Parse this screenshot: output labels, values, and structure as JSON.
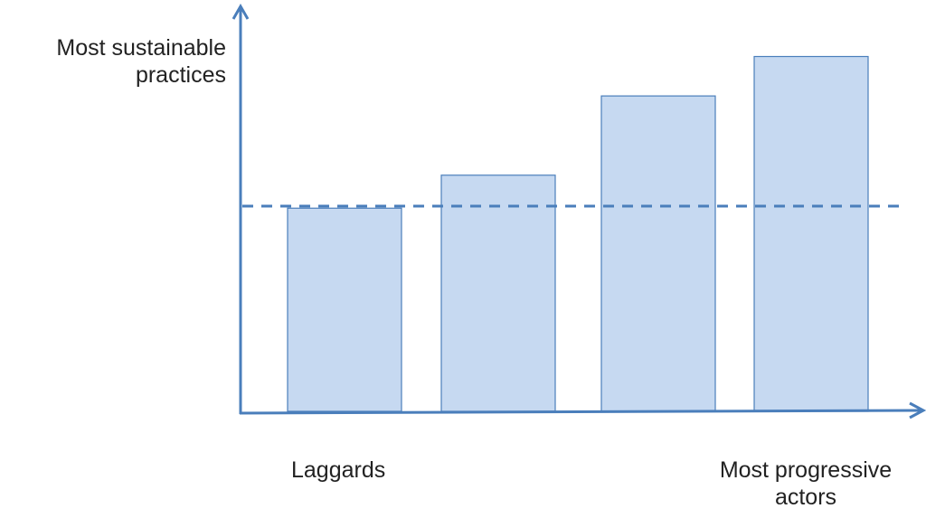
{
  "chart_data": {
    "type": "bar",
    "categories": [
      "",
      "",
      "",
      ""
    ],
    "values": [
      50.5,
      58.7,
      78.4,
      88.2
    ],
    "reference_line": 51.0,
    "ylim": [
      0,
      100
    ],
    "ylabel": "Most sustainable practices",
    "xlabel_left": "Laggards",
    "xlabel_right": "Most progressive actors",
    "grid": false,
    "axis_ticks": false,
    "colors": {
      "bar_fill": "#c6d9f1",
      "bar_stroke": "#4a7ebb",
      "axis": "#4a7ebb",
      "reference_line": "#4a7ebb"
    }
  }
}
